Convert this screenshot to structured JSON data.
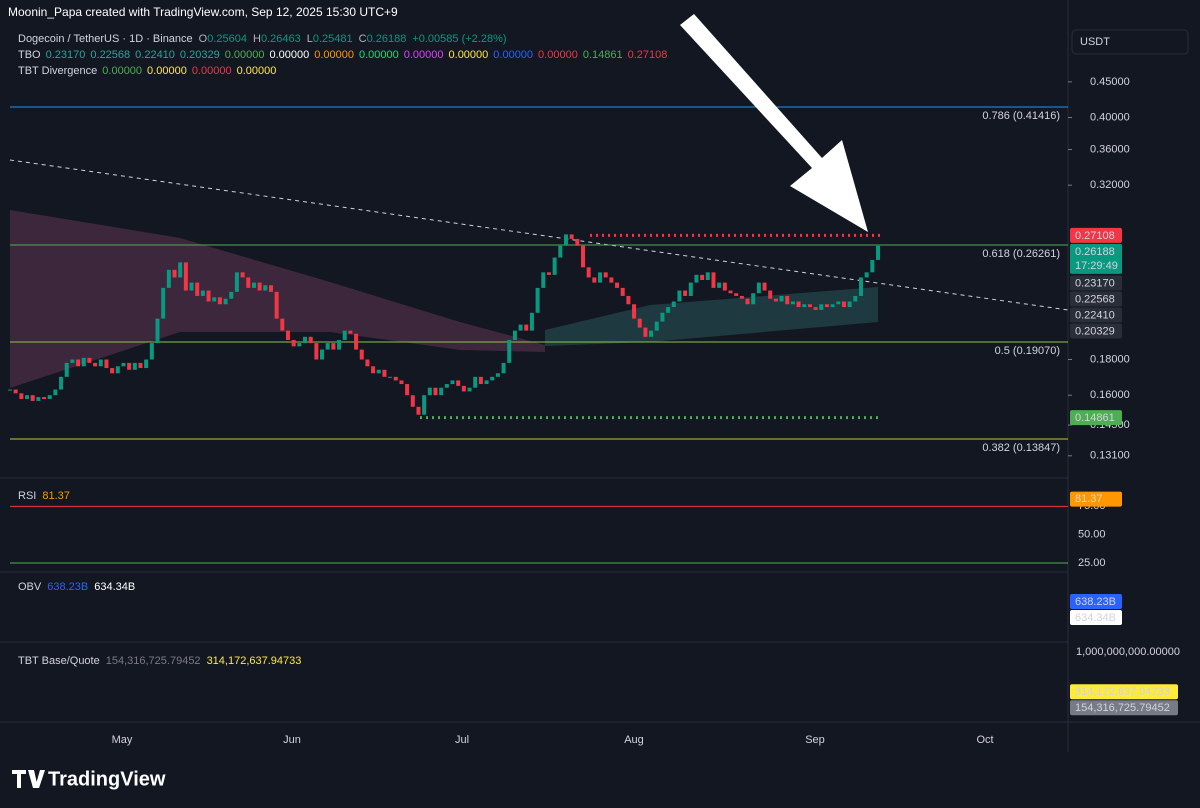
{
  "header": {
    "attribution": "Moonin_Papa created with TradingView.com, Sep 12, 2025 15:30 UTC+9",
    "symbol": "Dogecoin / TetherUS · 1D · Binance",
    "ohlc": [
      {
        "key": "O",
        "value": "0.25604"
      },
      {
        "key": "H",
        "value": "0.26463"
      },
      {
        "key": "L",
        "value": "0.25481"
      },
      {
        "key": "C",
        "value": "0.26188"
      }
    ],
    "change": "+0.00585 (+2.28%)"
  },
  "currency_button": "USDT",
  "indicators": [
    {
      "name": "TBO",
      "values": [
        {
          "text": "0.23170",
          "color": "#26a69a"
        },
        {
          "text": "0.22568",
          "color": "#26a69a"
        },
        {
          "text": "0.22410",
          "color": "#26a69a"
        },
        {
          "text": "0.20329",
          "color": "#26a69a"
        },
        {
          "text": "0.00000",
          "color": "#4caf50"
        },
        {
          "text": "0.00000",
          "color": "#ffffff"
        },
        {
          "text": "0.00000",
          "color": "#ff9800"
        },
        {
          "text": "0.00000",
          "color": "#00e676"
        },
        {
          "text": "0.00000",
          "color": "#e040fb"
        },
        {
          "text": "0.00000",
          "color": "#ffeb3b"
        },
        {
          "text": "0.00000",
          "color": "#2962ff"
        },
        {
          "text": "0.00000",
          "color": "#f23645"
        },
        {
          "text": "0.14861",
          "color": "#4caf50"
        },
        {
          "text": "0.27108",
          "color": "#f23645"
        }
      ]
    },
    {
      "name": "TBT Divergence",
      "values": [
        {
          "text": "0.00000",
          "color": "#4caf50"
        },
        {
          "text": "0.00000",
          "color": "#ffeb3b"
        },
        {
          "text": "0.00000",
          "color": "#f23645"
        },
        {
          "text": "0.00000",
          "color": "#ffeb3b"
        }
      ]
    }
  ],
  "chart_data": {
    "type": "candlestick",
    "log_scale": true,
    "up_color": "#089981",
    "down_color": "#f23645",
    "ylim": [
      0.125,
      0.534
    ],
    "values": [
      0.163,
      0.161,
      0.158,
      0.16,
      0.157,
      0.159,
      0.158,
      0.16,
      0.163,
      0.17,
      0.178,
      0.18,
      0.176,
      0.181,
      0.178,
      0.176,
      0.18,
      0.175,
      0.172,
      0.176,
      0.178,
      0.174,
      0.178,
      0.175,
      0.18,
      0.19,
      0.206,
      0.228,
      0.242,
      0.236,
      0.248,
      0.226,
      0.232,
      0.222,
      0.226,
      0.218,
      0.221,
      0.216,
      0.22,
      0.225,
      0.24,
      0.236,
      0.228,
      0.232,
      0.226,
      0.23,
      0.225,
      0.206,
      0.198,
      0.192,
      0.188,
      0.19,
      0.194,
      0.19,
      0.18,
      0.186,
      0.19,
      0.186,
      0.192,
      0.198,
      0.196,
      0.186,
      0.18,
      0.176,
      0.172,
      0.174,
      0.17,
      0.17,
      0.168,
      0.166,
      0.16,
      0.154,
      0.15,
      0.16,
      0.164,
      0.16,
      0.164,
      0.166,
      0.168,
      0.165,
      0.162,
      0.164,
      0.17,
      0.166,
      0.168,
      0.17,
      0.172,
      0.178,
      0.192,
      0.198,
      0.202,
      0.198,
      0.21,
      0.228,
      0.24,
      0.238,
      0.252,
      0.262,
      0.272,
      0.268,
      0.262,
      0.244,
      0.236,
      0.232,
      0.24,
      0.236,
      0.232,
      0.228,
      0.222,
      0.216,
      0.206,
      0.2,
      0.194,
      0.198,
      0.204,
      0.21,
      0.214,
      0.218,
      0.226,
      0.222,
      0.232,
      0.238,
      0.234,
      0.24,
      0.228,
      0.232,
      0.226,
      0.224,
      0.222,
      0.22,
      0.216,
      0.224,
      0.232,
      0.226,
      0.22,
      0.218,
      0.222,
      0.216,
      0.218,
      0.214,
      0.216,
      0.214,
      0.212,
      0.216,
      0.214,
      0.216,
      0.218,
      0.214,
      0.218,
      0.222,
      0.236,
      0.24,
      0.25,
      0.26188
    ],
    "yticks": [
      {
        "value": 0.45,
        "label": "0.45000"
      },
      {
        "value": 0.4,
        "label": "0.40000"
      },
      {
        "value": 0.36,
        "label": "0.36000"
      },
      {
        "value": 0.32,
        "label": "0.32000"
      },
      {
        "value": 0.18,
        "label": "0.18000"
      },
      {
        "value": 0.16,
        "label": "0.16000"
      },
      {
        "value": 0.145,
        "label": "0.14500"
      },
      {
        "value": 0.131,
        "label": "0.13100"
      }
    ],
    "fib_levels": [
      {
        "value": 0.41416,
        "label": "0.786 (0.41416)",
        "color": "#2196f3"
      },
      {
        "value": 0.26261,
        "label": "0.618 (0.26261)",
        "color": "#4caf50"
      },
      {
        "value": 0.1907,
        "label": "0.5 (0.19070)",
        "color": "#8bc34a"
      },
      {
        "value": 0.13847,
        "label": "0.382 (0.13847)",
        "color": "#c0ca33"
      }
    ],
    "price_labels": [
      {
        "value": 0.27108,
        "label": "0.27108",
        "color": "#f23645",
        "dotted": true
      },
      {
        "value": 0.26188,
        "label": "0.26188",
        "color": "#089981",
        "countdown": "17:29:49"
      },
      {
        "value": 0.2317,
        "label": "0.23170",
        "color": "#2a2e39"
      },
      {
        "value": 0.22568,
        "label": "0.22568",
        "color": "#2a2e39"
      },
      {
        "value": 0.2241,
        "label": "0.22410",
        "color": "#2a2e39"
      },
      {
        "value": 0.20329,
        "label": "0.20329",
        "color": "#2a2e39"
      },
      {
        "value": 0.14861,
        "label": "0.14861",
        "color": "#4caf50",
        "dotted": true
      }
    ]
  },
  "rsi": {
    "title": "RSI",
    "value": 81.37,
    "value_label": "81.37",
    "ylim": [
      17,
      100
    ],
    "yticks": [
      {
        "value": 75,
        "label": "75.00",
        "line_color": "#f23645"
      },
      {
        "value": 50,
        "label": "50.00"
      },
      {
        "value": 25,
        "label": "25.00",
        "line_color": "#4caf50"
      }
    ]
  },
  "obv": {
    "title": "OBV",
    "values": [
      {
        "text": "638.23B",
        "color": "#2962ff",
        "text_color": "#ffffff"
      },
      {
        "text": "634.34B",
        "color": "#ffffff",
        "text_color": "#131722"
      }
    ]
  },
  "volume": {
    "title": "TBT Base/Quote",
    "ylim": [
      0,
      1150000000
    ],
    "yticks": [
      {
        "value": 1000000000,
        "label": "1,000,000,000.00000"
      }
    ],
    "values": [
      {
        "value": 154316725.79452,
        "label": "154,316,725.79452",
        "color": "#787b86"
      },
      {
        "value": 314172637.94733,
        "label": "314,172,637.94733",
        "color": "#ffeb3b"
      }
    ]
  },
  "x_axis": {
    "labels": [
      "May",
      "Jun",
      "Jul",
      "Aug",
      "Sep",
      "Oct"
    ]
  },
  "logo": "TradingView"
}
